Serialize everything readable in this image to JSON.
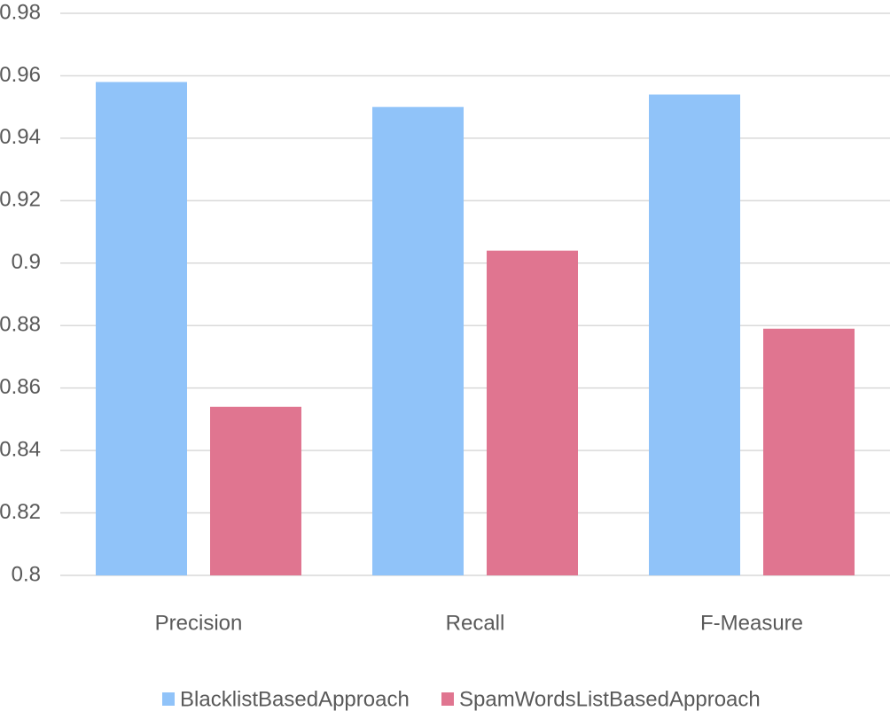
{
  "chart_data": {
    "type": "bar",
    "categories": [
      "Precision",
      "Recall",
      "F-Measure"
    ],
    "series": [
      {
        "name": "BlacklistBasedApproach",
        "color": "#90c3f9",
        "values": [
          0.958,
          0.95,
          0.954
        ]
      },
      {
        "name": "SpamWordsListBasedApproach",
        "color": "#e07590",
        "values": [
          0.854,
          0.904,
          0.879
        ]
      }
    ],
    "ylim": [
      0.8,
      0.98
    ],
    "yticks": [
      0.8,
      0.82,
      0.84,
      0.86,
      0.88,
      0.9,
      0.92,
      0.94,
      0.96,
      0.98
    ],
    "grid": true,
    "legend": "bottom"
  }
}
